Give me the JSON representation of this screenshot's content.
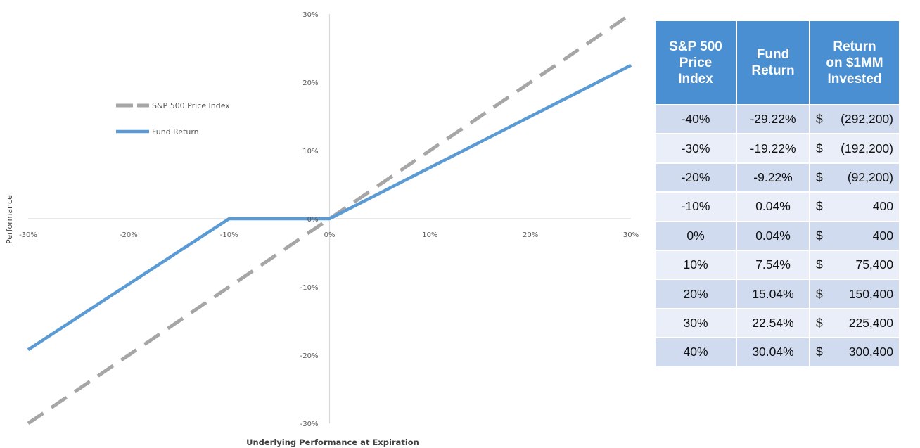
{
  "chart_data": {
    "type": "line",
    "xlabel": "Underlying Performance at Expiration",
    "ylabel": "Performance",
    "xlim": [
      -30,
      30
    ],
    "ylim": [
      -30,
      30
    ],
    "x_ticks": [
      "-30%",
      "-20%",
      "-10%",
      "0%",
      "10%",
      "20%",
      "30%"
    ],
    "y_ticks": [
      "30%",
      "20%",
      "10%",
      "0%",
      "-10%",
      "-20%",
      "-30%"
    ],
    "grid": false,
    "legend": "left",
    "series": [
      {
        "name": "S&P 500 Price Index",
        "style": "dashed",
        "color": "#a6a6a6",
        "x": [
          -30,
          30
        ],
        "y": [
          -30,
          30
        ]
      },
      {
        "name": "Fund Return",
        "style": "solid",
        "color": "#5b9bd5",
        "x": [
          -30,
          -10,
          0,
          30
        ],
        "y": [
          -19.2,
          0,
          0,
          22.5
        ]
      }
    ]
  },
  "table": {
    "headers": [
      [
        "S&P 500",
        "Price",
        "Index"
      ],
      [
        "Fund",
        "Return"
      ],
      [
        "Return",
        "on $1MM",
        "Invested"
      ]
    ],
    "rows": [
      {
        "index": "-40%",
        "fund": "-29.22%",
        "dollar": "$",
        "amount": "(292,200)"
      },
      {
        "index": "-30%",
        "fund": "-19.22%",
        "dollar": "$",
        "amount": "(192,200)"
      },
      {
        "index": "-20%",
        "fund": "-9.22%",
        "dollar": "$",
        "amount": "(92,200)"
      },
      {
        "index": "-10%",
        "fund": "0.04%",
        "dollar": "$",
        "amount": "400"
      },
      {
        "index": "0%",
        "fund": "0.04%",
        "dollar": "$",
        "amount": "400"
      },
      {
        "index": "10%",
        "fund": "7.54%",
        "dollar": "$",
        "amount": "75,400"
      },
      {
        "index": "20%",
        "fund": "15.04%",
        "dollar": "$",
        "amount": "150,400"
      },
      {
        "index": "30%",
        "fund": "22.54%",
        "dollar": "$",
        "amount": "225,400"
      },
      {
        "index": "40%",
        "fund": "30.04%",
        "dollar": "$",
        "amount": "300,400"
      }
    ]
  },
  "colors": {
    "header_bg": "#4a8fd1",
    "row_dark": "#d0dbef",
    "row_light": "#e9eef8",
    "axis": "#d9d9d9"
  }
}
